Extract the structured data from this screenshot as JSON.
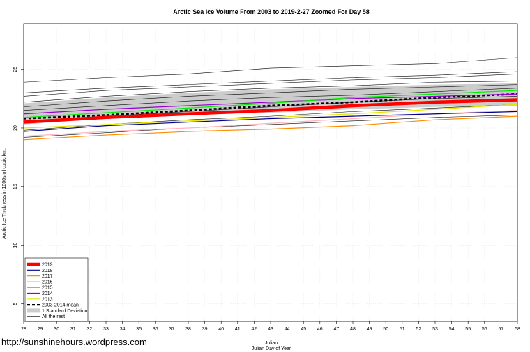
{
  "chart_data": {
    "type": "line",
    "title": "Arctic Sea Ice Volume From 2003 to 2019-2-27 Zoomed For Day 58",
    "xlabel": "Julian",
    "xlabel2": "Julian Day of Year",
    "ylabel": "Arctic Ice Thickness in 1000s of cubic km.",
    "xlim": [
      28,
      58
    ],
    "ylim": [
      3.5,
      28.9
    ],
    "x_ticks": [
      28,
      29,
      30,
      31,
      32,
      33,
      34,
      35,
      36,
      37,
      38,
      39,
      40,
      41,
      42,
      43,
      44,
      45,
      46,
      47,
      48,
      49,
      50,
      51,
      52,
      53,
      54,
      55,
      56,
      57,
      58
    ],
    "y_ticks": [
      5,
      10,
      15,
      20,
      25
    ],
    "grid": true,
    "legend_position": "bottom-left",
    "x": [
      28,
      33,
      38,
      43,
      48,
      53,
      58
    ],
    "std_band": {
      "name": "1 Standard Deviation",
      "color": "#cccccc",
      "upper": [
        22.1,
        22.6,
        23.0,
        23.3,
        23.5,
        23.7,
        23.8
      ],
      "lower": [
        20.3,
        20.8,
        21.1,
        21.3,
        21.6,
        21.8,
        21.9
      ]
    },
    "series": [
      {
        "name": "2019",
        "color": "#ff0000",
        "width": 4.5,
        "dash": "",
        "values": [
          20.5,
          20.9,
          21.2,
          21.5,
          21.9,
          22.2,
          22.4
        ]
      },
      {
        "name": "2018",
        "color": "#00008b",
        "width": 1.2,
        "dash": "",
        "values": [
          19.7,
          20.2,
          20.5,
          20.8,
          21.0,
          21.2,
          21.4
        ]
      },
      {
        "name": "2017",
        "color": "#ff8c00",
        "width": 1.2,
        "dash": "",
        "values": [
          19.0,
          19.4,
          19.7,
          19.9,
          20.2,
          20.7,
          21.0
        ]
      },
      {
        "name": "2016",
        "color": "#ffb6c1",
        "width": 1.2,
        "dash": "",
        "values": [
          19.3,
          19.7,
          20.0,
          20.4,
          20.8,
          21.2,
          21.5
        ]
      },
      {
        "name": "2015",
        "color": "#00ee00",
        "width": 1.2,
        "dash": "",
        "values": [
          20.9,
          21.3,
          21.7,
          22.1,
          22.6,
          22.9,
          23.2
        ]
      },
      {
        "name": "2014",
        "color": "#9400d3",
        "width": 1.2,
        "dash": "",
        "values": [
          21.2,
          21.6,
          21.9,
          22.2,
          22.5,
          22.7,
          22.9
        ]
      },
      {
        "name": "2013",
        "color": "#e6e600",
        "width": 1.2,
        "dash": "",
        "values": [
          20.0,
          20.3,
          20.6,
          20.9,
          21.2,
          21.6,
          22.0
        ]
      },
      {
        "name": "2003-2014 mean",
        "color": "#000000",
        "width": 2.6,
        "dash": "4,3",
        "values": [
          20.8,
          21.1,
          21.5,
          21.9,
          22.2,
          22.6,
          22.9
        ]
      },
      {
        "name": "All the rest",
        "color": "#000000",
        "width": 0.6,
        "dash": "",
        "values": [
          23.9,
          24.3,
          24.6,
          25.1,
          25.3,
          25.5,
          26.0
        ]
      },
      {
        "name": "",
        "color": "#000000",
        "width": 0.6,
        "dash": "",
        "values": [
          23.0,
          23.4,
          23.7,
          24.0,
          24.3,
          24.5,
          24.8
        ]
      },
      {
        "name": "",
        "color": "#000000",
        "width": 0.6,
        "dash": "",
        "values": [
          22.7,
          23.2,
          23.5,
          23.8,
          24.1,
          24.3,
          24.6
        ]
      },
      {
        "name": "",
        "color": "#000000",
        "width": 0.6,
        "dash": "",
        "values": [
          22.2,
          22.7,
          23.1,
          23.4,
          23.6,
          23.9,
          24.0
        ]
      },
      {
        "name": "",
        "color": "#000000",
        "width": 0.6,
        "dash": "",
        "values": [
          21.8,
          22.3,
          22.7,
          23.0,
          23.3,
          23.5,
          23.7
        ]
      },
      {
        "name": "",
        "color": "#000000",
        "width": 0.6,
        "dash": "",
        "values": [
          21.5,
          21.9,
          22.3,
          22.6,
          22.8,
          23.1,
          23.4
        ]
      },
      {
        "name": "",
        "color": "#000000",
        "width": 0.6,
        "dash": "",
        "values": [
          20.6,
          21.0,
          21.4,
          21.8,
          22.2,
          22.5,
          22.7
        ]
      },
      {
        "name": "",
        "color": "#000000",
        "width": 0.6,
        "dash": "",
        "values": [
          20.4,
          20.8,
          21.1,
          21.4,
          21.8,
          22.1,
          22.3
        ]
      },
      {
        "name": "",
        "color": "#000000",
        "width": 0.6,
        "dash": "",
        "values": [
          19.8,
          20.3,
          20.7,
          21.0,
          21.4,
          21.7,
          22.0
        ]
      },
      {
        "name": "",
        "color": "#000000",
        "width": 0.6,
        "dash": "",
        "values": [
          19.2,
          19.6,
          20.0,
          20.3,
          20.6,
          20.9,
          21.1
        ]
      }
    ],
    "legend": [
      {
        "label": "2019",
        "color": "#ff0000",
        "kind": "thick"
      },
      {
        "label": "2018",
        "color": "#00008b",
        "kind": "line"
      },
      {
        "label": "2017",
        "color": "#ff8c00",
        "kind": "line"
      },
      {
        "label": "2016",
        "color": "#ffb6c1",
        "kind": "line"
      },
      {
        "label": "2015",
        "color": "#00ee00",
        "kind": "line"
      },
      {
        "label": "2014",
        "color": "#9400d3",
        "kind": "line"
      },
      {
        "label": "2013",
        "color": "#e6e600",
        "kind": "line"
      },
      {
        "label": "2003-2014 mean",
        "color": "#000000",
        "kind": "dashed"
      },
      {
        "label": "1 Standard Deviation",
        "color": "#cccccc",
        "kind": "band"
      },
      {
        "label": "All the rest",
        "color": "#000000",
        "kind": "thin"
      }
    ]
  },
  "credit": "http://sunshinehours.wordpress.com"
}
